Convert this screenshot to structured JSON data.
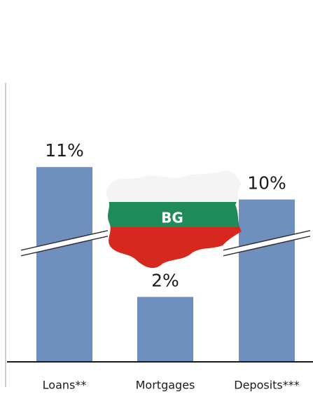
{
  "chart_data": {
    "type": "bar",
    "categories": [
      "Loans**",
      "Mortgages",
      "Deposits***"
    ],
    "values": [
      11,
      2,
      10
    ],
    "value_labels": [
      "11%",
      "2%",
      "10%"
    ],
    "color": "#6f8fbf",
    "annotation": "BG"
  }
}
